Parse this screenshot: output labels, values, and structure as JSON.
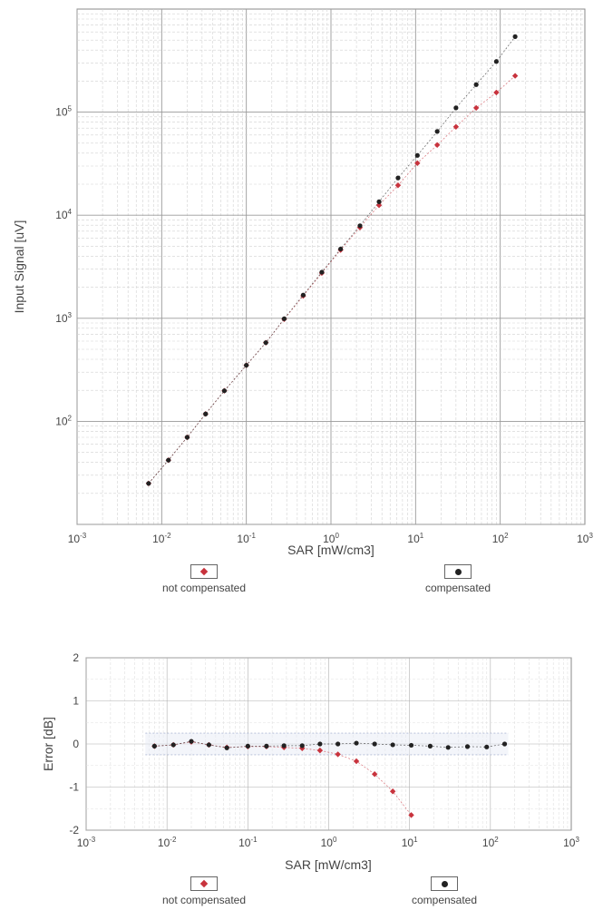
{
  "chart_data": [
    {
      "type": "scatter",
      "title": "",
      "xlabel": "SAR [mW/cm3]",
      "ylabel": "Input Signal [uV]",
      "xscale": "log",
      "yscale": "log",
      "xlim": [
        0.001,
        1000
      ],
      "ylim": [
        10,
        1000000
      ],
      "grid": true,
      "x_ticks": [
        {
          "base": "10",
          "exp": "-3",
          "value": 0.001
        },
        {
          "base": "10",
          "exp": "-2",
          "value": 0.01
        },
        {
          "base": "10",
          "exp": "-1",
          "value": 0.1
        },
        {
          "base": "10",
          "exp": "0",
          "value": 1
        },
        {
          "base": "10",
          "exp": "1",
          "value": 10
        },
        {
          "base": "10",
          "exp": "2",
          "value": 100
        },
        {
          "base": "10",
          "exp": "3",
          "value": 1000
        }
      ],
      "y_ticks": [
        {
          "base": "10",
          "exp": "2",
          "value": 100
        },
        {
          "base": "10",
          "exp": "3",
          "value": 1000
        },
        {
          "base": "10",
          "exp": "4",
          "value": 10000
        },
        {
          "base": "10",
          "exp": "5",
          "value": 100000
        }
      ],
      "series": [
        {
          "name": "not compensated",
          "color": "#c8333d",
          "marker": "diamond",
          "x": [
            0.007,
            0.012,
            0.02,
            0.033,
            0.055,
            0.1,
            0.17,
            0.28,
            0.47,
            0.78,
            1.3,
            2.2,
            3.7,
            6.2,
            10.5,
            18,
            30,
            52,
            90,
            150
          ],
          "y": [
            25,
            42,
            70,
            118,
            198,
            350,
            580,
            980,
            1650,
            2750,
            4600,
            7600,
            12500,
            19500,
            32000,
            48000,
            72000,
            110000,
            155000,
            225000
          ]
        },
        {
          "name": "compensated",
          "color": "#222222",
          "marker": "circle",
          "x": [
            0.007,
            0.012,
            0.02,
            0.033,
            0.055,
            0.1,
            0.17,
            0.28,
            0.47,
            0.78,
            1.3,
            2.2,
            3.7,
            6.2,
            10.5,
            18,
            30,
            52,
            90,
            150
          ],
          "y": [
            25,
            42,
            70,
            118,
            198,
            350,
            580,
            990,
            1680,
            2800,
            4700,
            7900,
            13500,
            23000,
            38000,
            65000,
            110000,
            185000,
            310000,
            540000
          ]
        }
      ],
      "legend": [
        {
          "label": "not compensated",
          "marker": "diamond",
          "color": "#c8333d"
        },
        {
          "label": "compensated",
          "marker": "circle",
          "color": "#222222"
        }
      ],
      "legend_position": "bottom"
    },
    {
      "type": "scatter",
      "title": "",
      "xlabel": "SAR [mW/cm3]",
      "ylabel": "Error [dB]",
      "xscale": "log",
      "yscale": "linear",
      "xlim": [
        0.001,
        1000
      ],
      "ylim": [
        -2,
        2
      ],
      "grid": true,
      "tolerance_band": [
        -0.25,
        0.25
      ],
      "x_ticks": [
        {
          "base": "10",
          "exp": "-3",
          "value": 0.001
        },
        {
          "base": "10",
          "exp": "-2",
          "value": 0.01
        },
        {
          "base": "10",
          "exp": "-1",
          "value": 0.1
        },
        {
          "base": "10",
          "exp": "0",
          "value": 1
        },
        {
          "base": "10",
          "exp": "1",
          "value": 10
        },
        {
          "base": "10",
          "exp": "2",
          "value": 100
        },
        {
          "base": "10",
          "exp": "3",
          "value": 1000
        }
      ],
      "y_ticks": [
        {
          "label": "2",
          "value": 2
        },
        {
          "label": "1",
          "value": 1
        },
        {
          "label": "0",
          "value": 0
        },
        {
          "label": "-1",
          "value": -1
        },
        {
          "label": "-2",
          "value": -2
        }
      ],
      "series": [
        {
          "name": "not compensated",
          "color": "#c8333d",
          "marker": "diamond",
          "x": [
            0.007,
            0.012,
            0.02,
            0.033,
            0.055,
            0.1,
            0.17,
            0.28,
            0.47,
            0.78,
            1.3,
            2.2,
            3.7,
            6.2,
            10.5
          ],
          "y": [
            -0.05,
            -0.02,
            0.05,
            -0.02,
            -0.08,
            -0.06,
            -0.06,
            -0.08,
            -0.1,
            -0.15,
            -0.24,
            -0.4,
            -0.7,
            -1.1,
            -1.65
          ]
        },
        {
          "name": "compensated",
          "color": "#222222",
          "marker": "circle",
          "x": [
            0.007,
            0.012,
            0.02,
            0.033,
            0.055,
            0.1,
            0.17,
            0.28,
            0.47,
            0.78,
            1.3,
            2.2,
            3.7,
            6.2,
            10.5,
            18,
            30,
            52,
            90,
            150
          ],
          "y": [
            -0.05,
            -0.02,
            0.06,
            -0.02,
            -0.09,
            -0.05,
            -0.05,
            -0.04,
            -0.04,
            0.0,
            0.0,
            0.02,
            0.0,
            -0.02,
            -0.03,
            -0.05,
            -0.08,
            -0.06,
            -0.07,
            0.0
          ]
        }
      ],
      "legend": [
        {
          "label": "not compensated",
          "marker": "diamond",
          "color": "#c8333d"
        },
        {
          "label": "compensated",
          "marker": "circle",
          "color": "#222222"
        }
      ],
      "legend_position": "bottom"
    }
  ]
}
